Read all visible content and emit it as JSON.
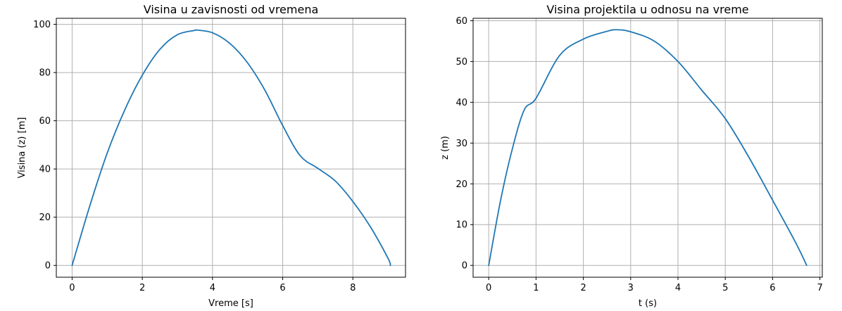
{
  "chart_data": [
    {
      "type": "line",
      "title": "Visina u zavisnosti od vremena",
      "xlabel": "Vreme [s]",
      "ylabel": "Visina (z) [m]",
      "xlim": [
        -0.45,
        9.5
      ],
      "ylim": [
        -4.9,
        102.5
      ],
      "xticks": [
        0,
        2,
        4,
        6,
        8
      ],
      "yticks": [
        0,
        20,
        40,
        60,
        80,
        100
      ],
      "grid": true,
      "line_color": "#1f77b4",
      "series": [
        {
          "x": [
            0,
            0.5,
            1,
            1.5,
            2,
            2.5,
            3,
            3.5,
            3.56,
            4,
            4.5,
            5,
            5.5,
            6,
            6.5,
            7,
            7.5,
            8,
            8.5,
            9,
            9.07
          ],
          "y": [
            0,
            24.5,
            46.6,
            64.5,
            78.9,
            89.6,
            95.7,
            97.5,
            97.6,
            96.5,
            92.0,
            84.0,
            72.5,
            58.0,
            45.5,
            40.3,
            35.0,
            26.5,
            16.0,
            3.0,
            0
          ]
        }
      ]
    },
    {
      "type": "line",
      "title": "Visina projektila u odnosu na vreme",
      "xlabel": "t (s)",
      "ylabel": "z (m)",
      "xlim": [
        -0.33,
        7.05
      ],
      "ylim": [
        -2.9,
        60.6
      ],
      "xticks": [
        0,
        1,
        2,
        3,
        4,
        5,
        6,
        7
      ],
      "yticks": [
        0,
        10,
        20,
        30,
        40,
        50,
        60
      ],
      "grid": true,
      "line_color": "#1f77b4",
      "series": [
        {
          "x": [
            0,
            0.25,
            0.5,
            0.75,
            1,
            1.5,
            2,
            2.5,
            2.7,
            3,
            3.5,
            4,
            4.5,
            5,
            5.5,
            6,
            6.5,
            6.72
          ],
          "y": [
            0,
            15.9,
            28.6,
            38.1,
            41.0,
            51.5,
            55.5,
            57.4,
            57.8,
            57.3,
            55.0,
            50.0,
            43.0,
            36.0,
            26.5,
            16.0,
            5.3,
            0
          ]
        }
      ]
    }
  ]
}
